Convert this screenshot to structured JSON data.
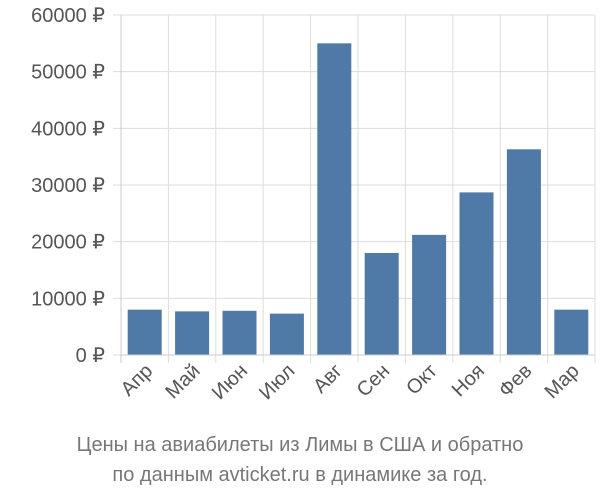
{
  "caption": {
    "line1": "Цены на авиабилеты из Лимы в США и обратно",
    "line2": "по данным avticket.ru в динамике за год."
  },
  "chart_data": {
    "type": "bar",
    "categories": [
      "Апр",
      "Май",
      "Июн",
      "Июл",
      "Авг",
      "Сен",
      "Окт",
      "Ноя",
      "Фев",
      "Мар"
    ],
    "values": [
      8000,
      7700,
      7800,
      7300,
      55000,
      18000,
      21200,
      28700,
      36300,
      8000
    ],
    "ylim": [
      0,
      60000
    ],
    "yticks": [
      0,
      10000,
      20000,
      30000,
      40000,
      50000,
      60000
    ],
    "ytick_labels": [
      "0 ₽",
      "10000 ₽",
      "20000 ₽",
      "30000 ₽",
      "40000 ₽",
      "50000 ₽",
      "60000 ₽"
    ],
    "bar_color": "#4f79a7",
    "grid": true,
    "legend": false
  }
}
